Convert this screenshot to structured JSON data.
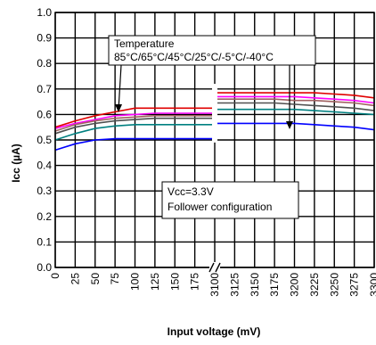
{
  "chart_data": {
    "type": "line",
    "title": "",
    "xlabel": "Input voltage (mV)",
    "ylabel": "Icc (µA)",
    "ylim": [
      0.0,
      1.0
    ],
    "y_ticks": [
      "0.0",
      "0.1",
      "0.2",
      "0.3",
      "0.4",
      "0.5",
      "0.6",
      "0.7",
      "0.8",
      "0.9",
      "1.0"
    ],
    "x_ticks_left": [
      "0",
      "25",
      "50",
      "75",
      "100",
      "125",
      "150",
      "175"
    ],
    "x_ticks_right": [
      "3100",
      "3125",
      "3150",
      "3175",
      "3200",
      "3225",
      "3250",
      "3275",
      "3300"
    ],
    "axis_break": true,
    "grid": true,
    "annotations": {
      "temperature_title": "Temperature",
      "temperature_list": "85°C/65°C/45°C/25°C/-5°C/-40°C",
      "condition_1": "Vcc=3.3V",
      "condition_2": "Follower configuration"
    },
    "series": [
      {
        "temperature": "85°C",
        "color": "#e00000",
        "left": [
          [
            0,
            0.55
          ],
          [
            25,
            0.575
          ],
          [
            50,
            0.595
          ],
          [
            75,
            0.61
          ],
          [
            100,
            0.625
          ],
          [
            125,
            0.625
          ],
          [
            150,
            0.625
          ],
          [
            175,
            0.625
          ],
          [
            200,
            0.625
          ]
        ],
        "right": [
          [
            3100,
            0.685
          ],
          [
            3125,
            0.685
          ],
          [
            3150,
            0.685
          ],
          [
            3175,
            0.685
          ],
          [
            3200,
            0.685
          ],
          [
            3225,
            0.685
          ],
          [
            3250,
            0.68
          ],
          [
            3275,
            0.675
          ],
          [
            3300,
            0.665
          ]
        ]
      },
      {
        "temperature": "65°C",
        "color": "#ff00ff",
        "left": [
          [
            0,
            0.545
          ],
          [
            25,
            0.565
          ],
          [
            50,
            0.58
          ],
          [
            75,
            0.595
          ],
          [
            100,
            0.6
          ],
          [
            125,
            0.605
          ],
          [
            150,
            0.605
          ],
          [
            175,
            0.605
          ],
          [
            200,
            0.605
          ]
        ],
        "right": [
          [
            3100,
            0.67
          ],
          [
            3125,
            0.67
          ],
          [
            3150,
            0.67
          ],
          [
            3175,
            0.67
          ],
          [
            3200,
            0.67
          ],
          [
            3225,
            0.665
          ],
          [
            3250,
            0.66
          ],
          [
            3275,
            0.655
          ],
          [
            3300,
            0.645
          ]
        ]
      },
      {
        "temperature": "45°C",
        "color": "#a06060",
        "left": [
          [
            0,
            0.535
          ],
          [
            25,
            0.56
          ],
          [
            50,
            0.575
          ],
          [
            75,
            0.585
          ],
          [
            100,
            0.59
          ],
          [
            125,
            0.595
          ],
          [
            150,
            0.595
          ],
          [
            175,
            0.595
          ],
          [
            200,
            0.595
          ]
        ],
        "right": [
          [
            3100,
            0.66
          ],
          [
            3125,
            0.66
          ],
          [
            3150,
            0.66
          ],
          [
            3175,
            0.66
          ],
          [
            3200,
            0.655
          ],
          [
            3225,
            0.655
          ],
          [
            3250,
            0.65
          ],
          [
            3275,
            0.645
          ],
          [
            3300,
            0.635
          ]
        ]
      },
      {
        "temperature": "25°C",
        "color": "#505050",
        "left": [
          [
            0,
            0.525
          ],
          [
            25,
            0.55
          ],
          [
            50,
            0.565
          ],
          [
            75,
            0.575
          ],
          [
            100,
            0.58
          ],
          [
            125,
            0.585
          ],
          [
            150,
            0.585
          ],
          [
            175,
            0.585
          ],
          [
            200,
            0.585
          ]
        ],
        "right": [
          [
            3100,
            0.645
          ],
          [
            3125,
            0.645
          ],
          [
            3150,
            0.645
          ],
          [
            3175,
            0.645
          ],
          [
            3200,
            0.64
          ],
          [
            3225,
            0.635
          ],
          [
            3250,
            0.63
          ],
          [
            3275,
            0.625
          ],
          [
            3300,
            0.615
          ]
        ]
      },
      {
        "temperature": "-5°C",
        "color": "#008080",
        "left": [
          [
            0,
            0.5
          ],
          [
            25,
            0.525
          ],
          [
            50,
            0.545
          ],
          [
            75,
            0.555
          ],
          [
            100,
            0.56
          ],
          [
            125,
            0.56
          ],
          [
            150,
            0.56
          ],
          [
            175,
            0.56
          ],
          [
            200,
            0.56
          ]
        ],
        "right": [
          [
            3100,
            0.62
          ],
          [
            3125,
            0.62
          ],
          [
            3150,
            0.62
          ],
          [
            3175,
            0.62
          ],
          [
            3200,
            0.62
          ],
          [
            3225,
            0.615
          ],
          [
            3250,
            0.61
          ],
          [
            3275,
            0.605
          ],
          [
            3300,
            0.6
          ]
        ]
      },
      {
        "temperature": "-40°C",
        "color": "#0000ff",
        "left": [
          [
            0,
            0.46
          ],
          [
            25,
            0.485
          ],
          [
            50,
            0.5
          ],
          [
            75,
            0.505
          ],
          [
            100,
            0.505
          ],
          [
            125,
            0.505
          ],
          [
            150,
            0.505
          ],
          [
            175,
            0.505
          ],
          [
            200,
            0.505
          ]
        ],
        "right": [
          [
            3100,
            0.565
          ],
          [
            3125,
            0.565
          ],
          [
            3150,
            0.565
          ],
          [
            3175,
            0.565
          ],
          [
            3200,
            0.565
          ],
          [
            3225,
            0.56
          ],
          [
            3250,
            0.555
          ],
          [
            3275,
            0.55
          ],
          [
            3300,
            0.54
          ]
        ]
      }
    ]
  }
}
